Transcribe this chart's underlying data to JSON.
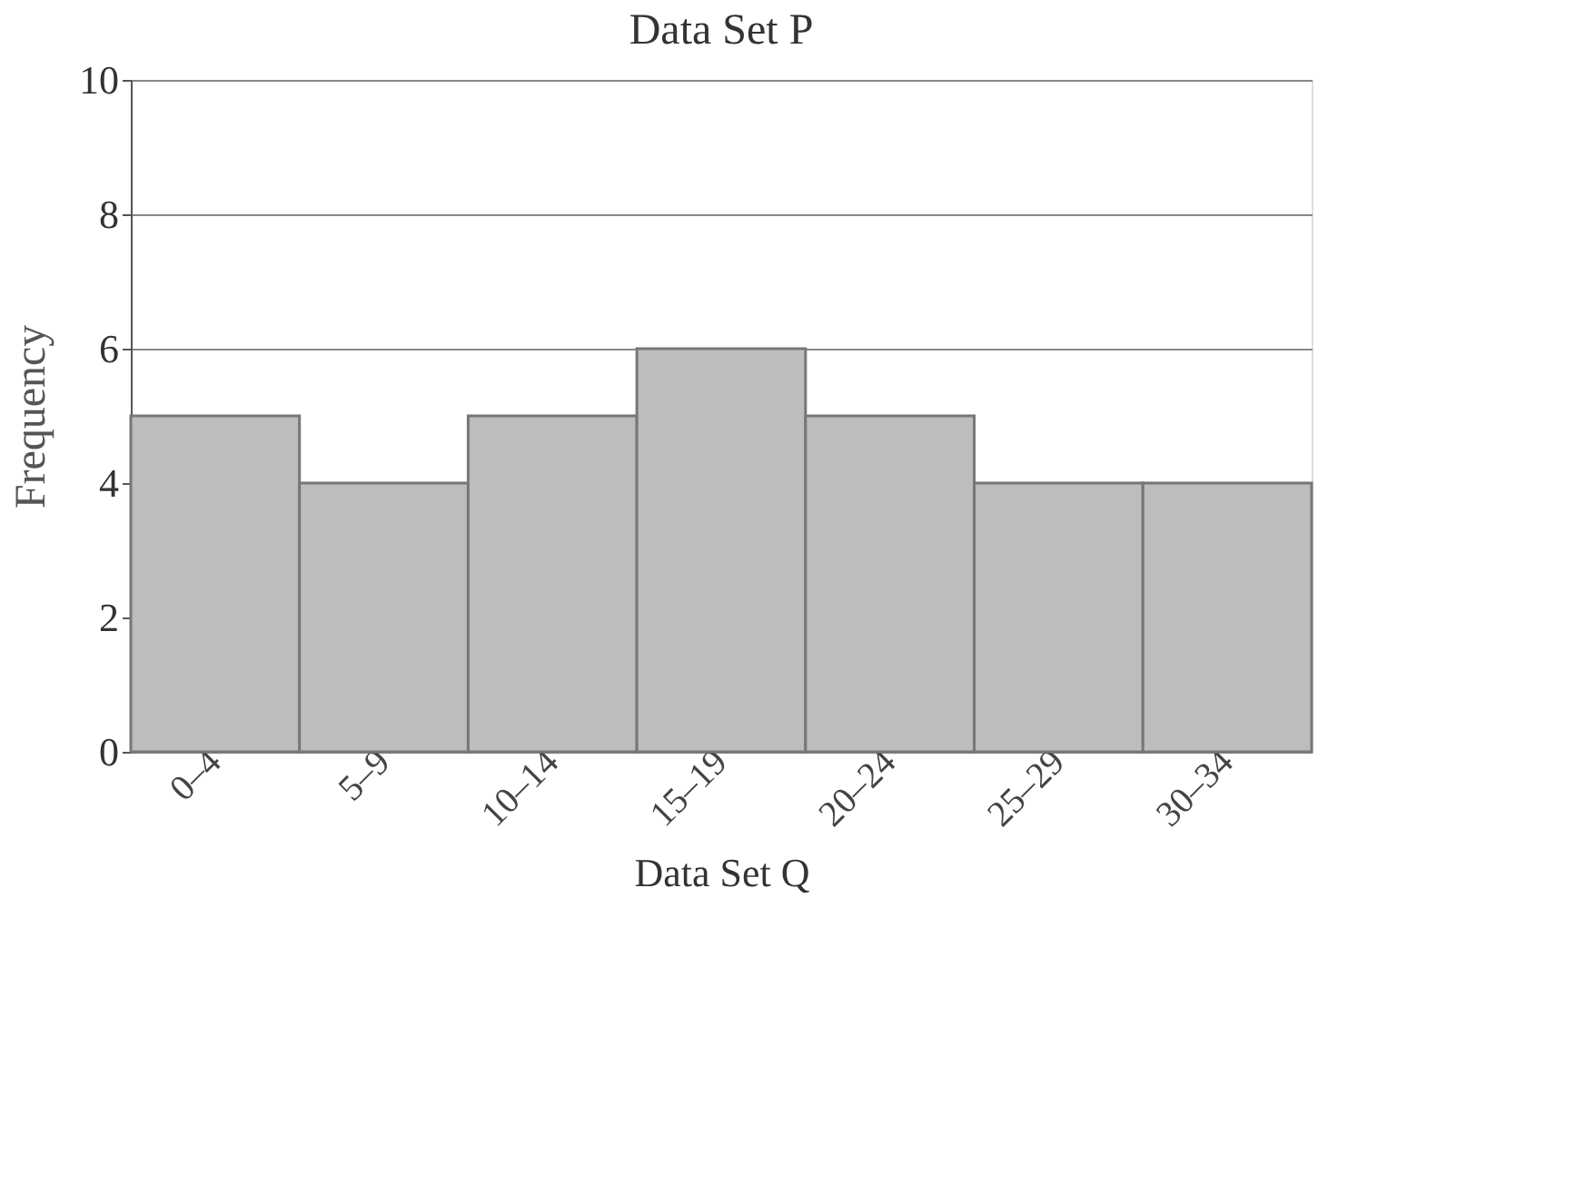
{
  "chart_data": {
    "type": "bar",
    "title": "Data Set P",
    "xlabel": "Data Set Q",
    "ylabel": "Frequency",
    "categories": [
      "0–4",
      "5–9",
      "10–14",
      "15–19",
      "20–24",
      "25–29",
      "30–34"
    ],
    "values": [
      5,
      4,
      5,
      6,
      5,
      4,
      4
    ],
    "color": "#bcbdbf",
    "ylim": [
      0,
      10
    ],
    "yticks": [
      0,
      2,
      4,
      6,
      8,
      10
    ],
    "grid": "y"
  }
}
